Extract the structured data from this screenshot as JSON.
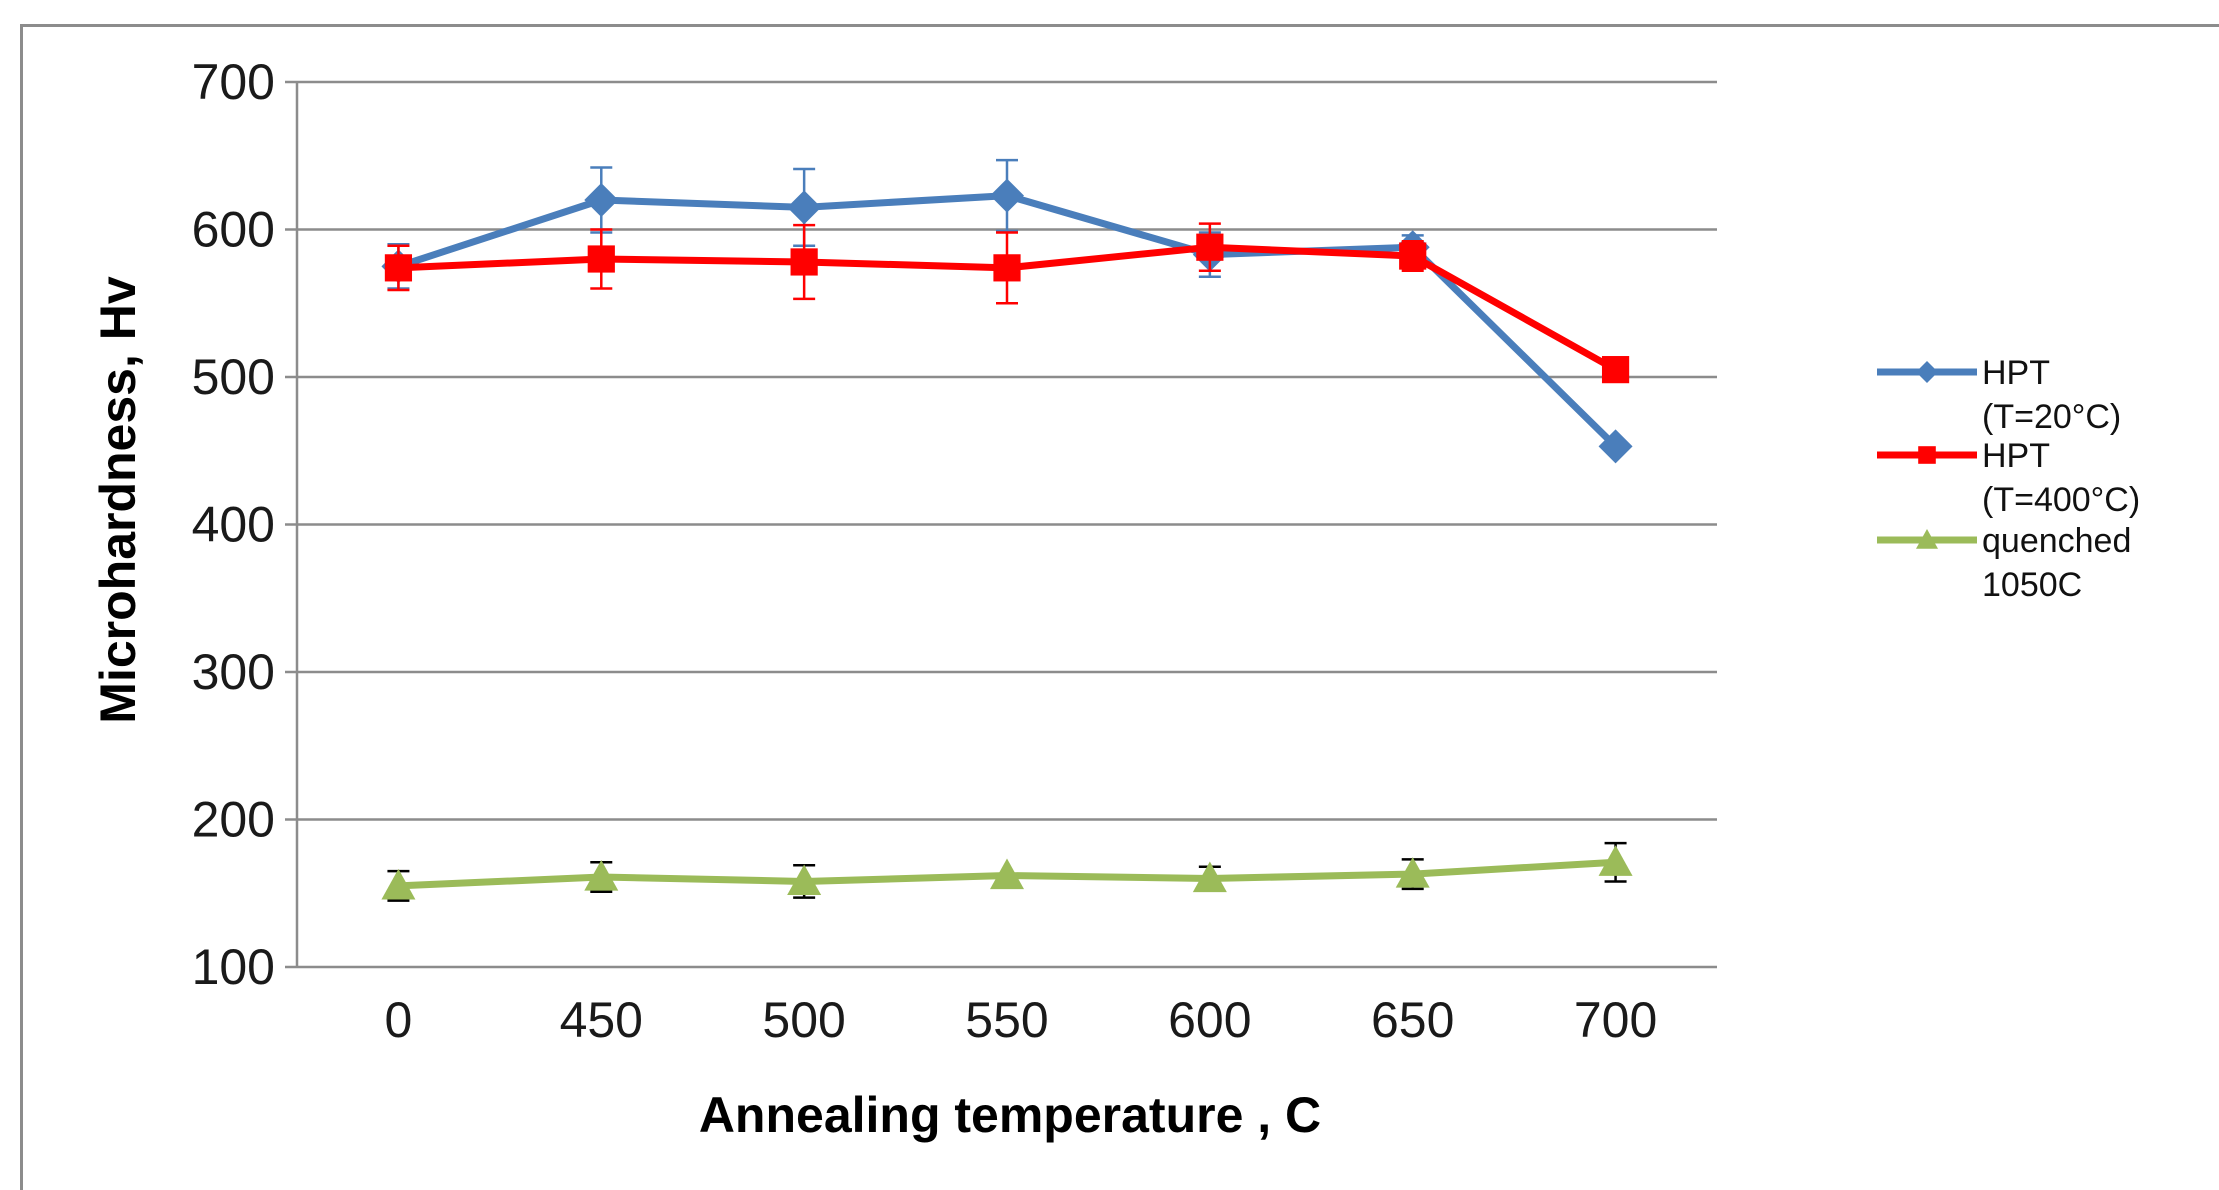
{
  "chart_data": {
    "type": "line",
    "categories": [
      "0",
      "450",
      "500",
      "550",
      "600",
      "650",
      "700"
    ],
    "xlabel": "Annealing temperature , C",
    "ylabel": "Microhardness, Hv",
    "ylim": [
      100,
      700
    ],
    "yticks": [
      "100",
      "200",
      "300",
      "400",
      "500",
      "600",
      "700"
    ],
    "grid": true,
    "legend_position": "right",
    "series": [
      {
        "name_lines": [
          "HPT",
          "(T=20°C)"
        ],
        "color": "#4a7ebb",
        "marker": "diamond",
        "values": [
          575,
          620,
          615,
          623,
          583,
          588,
          453
        ],
        "errors": [
          15,
          22,
          26,
          24,
          15,
          8,
          0
        ]
      },
      {
        "name_lines": [
          "HPT",
          "(T=400°C)"
        ],
        "color": "#ff0000",
        "marker": "square",
        "values": [
          574,
          580,
          578,
          574,
          588,
          582,
          505
        ],
        "errors": [
          15,
          20,
          25,
          24,
          16,
          10,
          0
        ]
      },
      {
        "name_lines": [
          "quenched",
          "1050C"
        ],
        "color": "#9bbb59",
        "marker": "triangle",
        "values": [
          155,
          161,
          158,
          162,
          160,
          163,
          171
        ],
        "errors": [
          10,
          10,
          11,
          0,
          8,
          10,
          13
        ]
      }
    ]
  }
}
